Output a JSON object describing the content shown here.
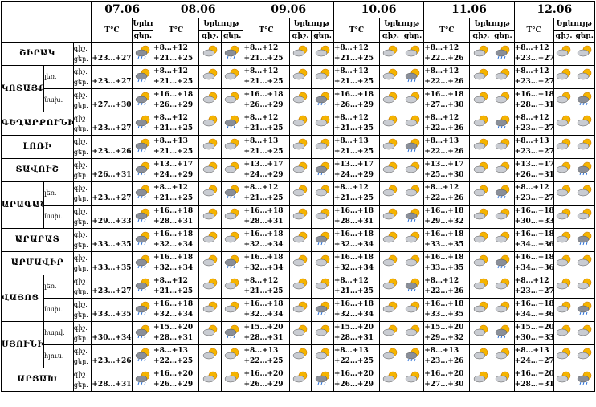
{
  "header": {
    "dates": [
      "07.06",
      "08.06",
      "09.06",
      "10.06",
      "11.06",
      "12.06"
    ],
    "temp": "T°C",
    "phenomenon": "Երևույթ",
    "night": "գիշ.",
    "day": "ցեր."
  },
  "regions": [
    {
      "name": "ՇԻՐԱԿ",
      "rows": [
        {
          "d07": "+23…+27",
          "days": [
            [
              "+8…+12",
              "+21…+25"
            ],
            [
              "+8…+12",
              "+21…+25"
            ],
            [
              "+8…+12",
              "+21…+25"
            ],
            [
              "+8…+12",
              "+22…+26"
            ],
            [
              "+8…+12",
              "+23…+27"
            ]
          ]
        }
      ]
    },
    {
      "name": "ԿՈՏԱՅՔ",
      "rows": [
        {
          "sub": "լեռ.",
          "d07": "+23…+27",
          "days": [
            [
              "+8…+12",
              "+21…+25"
            ],
            [
              "+8…+12",
              "+21…+25"
            ],
            [
              "+8…+12",
              "+21…+25"
            ],
            [
              "+8…+12",
              "+22…+26"
            ],
            [
              "+8…+12",
              "+23…+27"
            ]
          ]
        },
        {
          "sub": "նախ.",
          "d07": "+27…+30",
          "days": [
            [
              "+16…+18",
              "+26…+29"
            ],
            [
              "+16…+18",
              "+26…+29"
            ],
            [
              "+16…+18",
              "+26…+29"
            ],
            [
              "+16…+18",
              "+27…+30"
            ],
            [
              "+16…+18",
              "+28…+31"
            ]
          ]
        }
      ]
    },
    {
      "name": "ԳԵՂԱՐՔՈՒՆԻՔ",
      "rows": [
        {
          "d07": "+23…+27",
          "days": [
            [
              "+8…+12",
              "+21…+25"
            ],
            [
              "+8…+12",
              "+21…+25"
            ],
            [
              "+8…+12",
              "+21…+25"
            ],
            [
              "+8…+12",
              "+22…+26"
            ],
            [
              "+8…+12",
              "+23…+27"
            ]
          ]
        }
      ]
    },
    {
      "name": "ԼՈՌԻ",
      "rows": [
        {
          "d07": "+23…+26",
          "days": [
            [
              "+8…+13",
              "+21…+25"
            ],
            [
              "+8…+13",
              "+21…+25"
            ],
            [
              "+8…+13",
              "+21…+25"
            ],
            [
              "+8…+13",
              "+22…+26"
            ],
            [
              "+8…+13",
              "+23…+27"
            ]
          ]
        }
      ]
    },
    {
      "name": "ՏԱՎՈՒՇ",
      "rows": [
        {
          "d07": "+26…+31",
          "days": [
            [
              "+13…+17",
              "+24…+29"
            ],
            [
              "+13…+17",
              "+24…+29"
            ],
            [
              "+13…+17",
              "+24…+29"
            ],
            [
              "+13…+17",
              "+25…+30"
            ],
            [
              "+13…+17",
              "+26…+31"
            ]
          ]
        }
      ]
    },
    {
      "name": "ԱՐԱԳԱԾՈՏՆ",
      "rows": [
        {
          "sub": "լեռ.",
          "d07": "+23…+27",
          "days": [
            [
              "+8…+12",
              "+21…+25"
            ],
            [
              "+8…+12",
              "+21…+25"
            ],
            [
              "+8…+12",
              "+21…+25"
            ],
            [
              "+8…+12",
              "+22…+26"
            ],
            [
              "+8…+12",
              "+23…+27"
            ]
          ]
        },
        {
          "sub": "նախ.",
          "d07": "+29…+33",
          "days": [
            [
              "+16…+18",
              "+28…+31"
            ],
            [
              "+16…+18",
              "+28…+31"
            ],
            [
              "+16…+18",
              "+28…+31"
            ],
            [
              "+16…+18",
              "+29…+32"
            ],
            [
              "+16…+18",
              "+30…+33"
            ]
          ]
        }
      ]
    },
    {
      "name": "ԱՐԱՐԱՏ",
      "rows": [
        {
          "d07": "+33…+35",
          "days": [
            [
              "+16…+18",
              "+32…+34"
            ],
            [
              "+16…+18",
              "+32…+34"
            ],
            [
              "+16…+18",
              "+32…+34"
            ],
            [
              "+16…+18",
              "+33…+35"
            ],
            [
              "+16…+18",
              "+34…+36"
            ]
          ]
        }
      ]
    },
    {
      "name": "ԱՐՄԱՎԻՐ",
      "rows": [
        {
          "d07": "+33…+35",
          "days": [
            [
              "+16…+18",
              "+32…+34"
            ],
            [
              "+16…+18",
              "+32…+34"
            ],
            [
              "+16…+18",
              "+32…+34"
            ],
            [
              "+16…+18",
              "+33…+35"
            ],
            [
              "+16…+18",
              "+34…+36"
            ]
          ]
        }
      ]
    },
    {
      "name": "ՎԱՅՈՑ ՁՈՐ",
      "rows": [
        {
          "sub": "լեռ.",
          "d07": "+23…+27",
          "days": [
            [
              "+8…+12",
              "+21…+25"
            ],
            [
              "+8…+12",
              "+21…+25"
            ],
            [
              "+8…+12",
              "+21…+25"
            ],
            [
              "+8…+12",
              "+22…+26"
            ],
            [
              "+8…+12",
              "+23…+27"
            ]
          ]
        },
        {
          "sub": "նախ.",
          "d07": "+33…+35",
          "days": [
            [
              "+16…+18",
              "+32…+34"
            ],
            [
              "+16…+18",
              "+32…+34"
            ],
            [
              "+16…+18",
              "+32…+34"
            ],
            [
              "+16…+18",
              "+33…+35"
            ],
            [
              "+16…+18",
              "+34…+36"
            ]
          ]
        }
      ]
    },
    {
      "name": "ՍՅՈՒՆԻՔ",
      "rows": [
        {
          "sub": "հարվ.",
          "d07": "+30…+34",
          "days": [
            [
              "+15…+20",
              "+28…+31"
            ],
            [
              "+15…+20",
              "+28…+31"
            ],
            [
              "+15…+20",
              "+28…+31"
            ],
            [
              "+15…+20",
              "+29…+32"
            ],
            [
              "+15…+20",
              "+30…+33"
            ]
          ]
        },
        {
          "sub": "հյուս.",
          "d07": "+23…+26",
          "days": [
            [
              "+8…+13",
              "+22…+25"
            ],
            [
              "+8…+13",
              "+22…+25"
            ],
            [
              "+8…+13",
              "+22…+25"
            ],
            [
              "+8…+13",
              "+23…+26"
            ],
            [
              "+8…+13",
              "+24…+27"
            ]
          ]
        }
      ]
    },
    {
      "name": "ԱՐՑԱԽ",
      "rows": [
        {
          "d07": "+28…+31",
          "days": [
            [
              "+16…+20",
              "+26…+29"
            ],
            [
              "+16…+20",
              "+26…+29"
            ],
            [
              "+16…+20",
              "+26…+29"
            ],
            [
              "+16…+20",
              "+27…+30"
            ],
            [
              "+16…+20",
              "+28…+31"
            ]
          ]
        }
      ]
    }
  ]
}
